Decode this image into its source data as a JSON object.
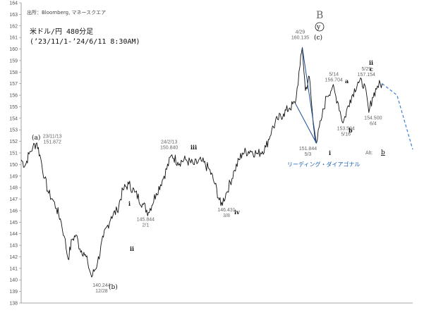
{
  "chart_data": {
    "type": "line",
    "source": "出所：Bloomberg, マネースクエア",
    "title_line1": "米ドル/円 480分足",
    "title_line2": "(’23/11/1-’24/6/11 8:30AM)",
    "ylim": [
      138,
      164
    ],
    "yticks": [
      138,
      139,
      140,
      141,
      142,
      143,
      144,
      145,
      146,
      147,
      148,
      149,
      150,
      151,
      152,
      153,
      154,
      155,
      156,
      157,
      158,
      159,
      160,
      161,
      162,
      163,
      164
    ],
    "anchors": [
      {
        "t": 0.0,
        "v": 150.4
      },
      {
        "t": 0.01,
        "v": 149.9
      },
      {
        "t": 0.02,
        "v": 150.9
      },
      {
        "t": 0.03,
        "v": 151.5
      },
      {
        "t": 0.04,
        "v": 151.87
      },
      {
        "t": 0.05,
        "v": 150.5
      },
      {
        "t": 0.06,
        "v": 148.8
      },
      {
        "t": 0.07,
        "v": 147.5
      },
      {
        "t": 0.08,
        "v": 147.0
      },
      {
        "t": 0.09,
        "v": 146.2
      },
      {
        "t": 0.1,
        "v": 145.3
      },
      {
        "t": 0.11,
        "v": 143.8
      },
      {
        "t": 0.12,
        "v": 141.8
      },
      {
        "t": 0.13,
        "v": 143.5
      },
      {
        "t": 0.14,
        "v": 143.9
      },
      {
        "t": 0.15,
        "v": 142.7
      },
      {
        "t": 0.16,
        "v": 142.4
      },
      {
        "t": 0.17,
        "v": 141.5
      },
      {
        "t": 0.18,
        "v": 140.244
      },
      {
        "t": 0.195,
        "v": 141.5
      },
      {
        "t": 0.21,
        "v": 143.7
      },
      {
        "t": 0.23,
        "v": 145.5
      },
      {
        "t": 0.245,
        "v": 146.0
      },
      {
        "t": 0.26,
        "v": 147.8
      },
      {
        "t": 0.275,
        "v": 148.3
      },
      {
        "t": 0.29,
        "v": 147.6
      },
      {
        "t": 0.31,
        "v": 146.6
      },
      {
        "t": 0.325,
        "v": 145.844
      },
      {
        "t": 0.345,
        "v": 147.5
      },
      {
        "t": 0.365,
        "v": 149.0
      },
      {
        "t": 0.385,
        "v": 150.84
      },
      {
        "t": 0.4,
        "v": 150.2
      },
      {
        "t": 0.42,
        "v": 150.4
      },
      {
        "t": 0.44,
        "v": 150.0
      },
      {
        "t": 0.46,
        "v": 150.3
      },
      {
        "t": 0.48,
        "v": 149.6
      },
      {
        "t": 0.495,
        "v": 148.3
      },
      {
        "t": 0.51,
        "v": 146.431
      },
      {
        "t": 0.525,
        "v": 147.6
      },
      {
        "t": 0.545,
        "v": 149.5
      },
      {
        "t": 0.565,
        "v": 151.0
      },
      {
        "t": 0.585,
        "v": 151.2
      },
      {
        "t": 0.605,
        "v": 150.9
      },
      {
        "t": 0.625,
        "v": 151.5
      },
      {
        "t": 0.64,
        "v": 153.0
      },
      {
        "t": 0.655,
        "v": 153.9
      },
      {
        "t": 0.67,
        "v": 154.4
      },
      {
        "t": 0.685,
        "v": 154.9
      },
      {
        "t": 0.7,
        "v": 155.3
      },
      {
        "t": 0.712,
        "v": 158.5
      },
      {
        "t": 0.718,
        "v": 160.135
      },
      {
        "t": 0.726,
        "v": 156.4
      },
      {
        "t": 0.736,
        "v": 157.6
      },
      {
        "t": 0.746,
        "v": 153.5
      },
      {
        "t": 0.754,
        "v": 151.844
      },
      {
        "t": 0.766,
        "v": 153.8
      },
      {
        "t": 0.78,
        "v": 155.9
      },
      {
        "t": 0.795,
        "v": 156.704
      },
      {
        "t": 0.81,
        "v": 155.3
      },
      {
        "t": 0.822,
        "v": 153.594
      },
      {
        "t": 0.84,
        "v": 155.6
      },
      {
        "t": 0.86,
        "v": 157.154
      },
      {
        "t": 0.876,
        "v": 157.0
      },
      {
        "t": 0.888,
        "v": 154.5
      },
      {
        "t": 0.897,
        "v": 155.8
      },
      {
        "t": 0.91,
        "v": 156.8
      },
      {
        "t": 0.922,
        "v": 157.0
      }
    ],
    "forecast": [
      {
        "t": 0.922,
        "v": 157.0
      },
      {
        "t": 0.96,
        "v": 156.0
      },
      {
        "t": 1.0,
        "v": 151.3
      }
    ],
    "diagonal_lines": [
      [
        {
          "t": 0.718,
          "v": 160.135
        },
        {
          "t": 0.754,
          "v": 151.844
        }
      ],
      [
        {
          "t": 0.7,
          "v": 155.3
        },
        {
          "t": 0.754,
          "v": 151.844
        }
      ]
    ],
    "price_labels": [
      {
        "id": "a-peak",
        "t": 0.04,
        "v": 151.87,
        "lines": [
          "23/11/13",
          "151.872"
        ]
      },
      {
        "id": "b-low",
        "t": 0.18,
        "v": 140.244,
        "lines": [
          "140.244",
          "12/28"
        ]
      },
      {
        "id": "low-feb",
        "t": 0.325,
        "v": 145.844,
        "lines": [
          "145.844",
          "2/1"
        ]
      },
      {
        "id": "high-feb",
        "t": 0.385,
        "v": 150.84,
        "lines": [
          "24/2/13",
          "150.840"
        ]
      },
      {
        "id": "low-mar",
        "t": 0.51,
        "v": 146.431,
        "lines": [
          "146.431",
          "3/8"
        ]
      },
      {
        "id": "peak-apr",
        "t": 0.718,
        "v": 160.135,
        "lines": [
          "4/29",
          "160.135"
        ]
      },
      {
        "id": "low-may3",
        "t": 0.754,
        "v": 151.844,
        "lines": [
          "151.844",
          "5/3"
        ]
      },
      {
        "id": "high-may14",
        "t": 0.795,
        "v": 156.704,
        "lines": [
          "5/14",
          "156.704"
        ]
      },
      {
        "id": "low-may16",
        "t": 0.822,
        "v": 153.594,
        "lines": [
          "153.594",
          "5/16"
        ]
      },
      {
        "id": "high-may29",
        "t": 0.86,
        "v": 157.154,
        "lines": [
          "5/29",
          "157.154"
        ]
      },
      {
        "id": "low-jun4",
        "t": 0.888,
        "v": 154.5,
        "lines": [
          "154.500",
          "6/4"
        ]
      }
    ],
    "wave_labels": [
      "(a)",
      "(b)",
      "B",
      "y",
      "(c)",
      "i",
      "ii",
      "iii",
      "iv",
      "i",
      "a",
      "b",
      "c",
      "ii"
    ],
    "alt_label": "Alt:",
    "alt_wave": "b",
    "leading_diagonal_label": "リーディング・ダイアゴナル",
    "colors": {
      "price": "#111111",
      "diagonal": "#1f4e9c",
      "forecast": "#3a7bd5",
      "label_text": "#666666",
      "grid_frame": "#888888"
    }
  }
}
